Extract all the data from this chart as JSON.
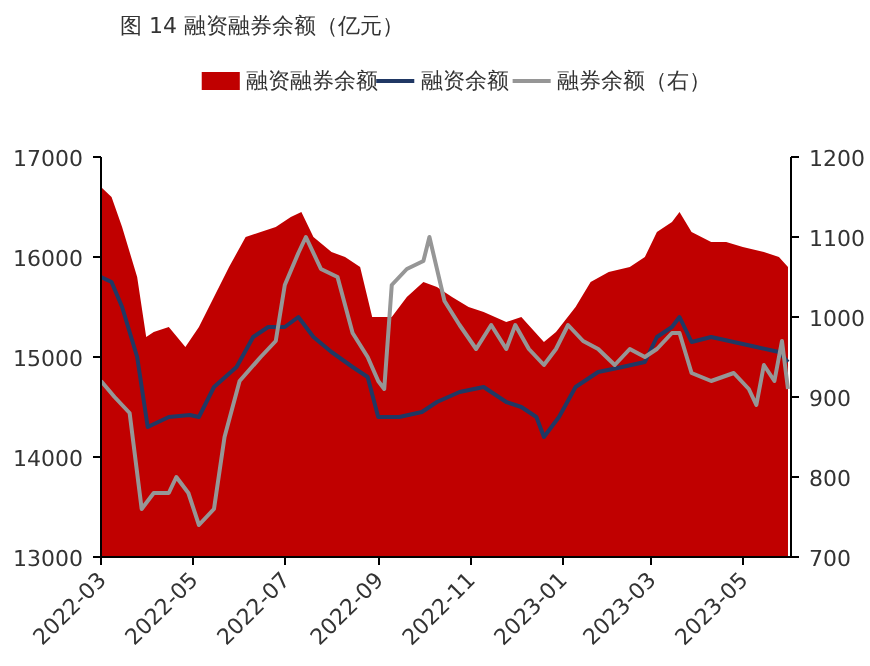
{
  "chart_data": {
    "type": "line",
    "title": "图 14 融资融券余额（亿元）",
    "xlim": [
      "2022-03-01",
      "2023-06-02"
    ],
    "xticks": [
      {
        "value": "2022-03-01",
        "label": "2022-03"
      },
      {
        "value": "2022-05-01",
        "label": "2022-05"
      },
      {
        "value": "2022-07-01",
        "label": "2022-07"
      },
      {
        "value": "2022-09-01",
        "label": "2022-09"
      },
      {
        "value": "2022-11-01",
        "label": "2022-11"
      },
      {
        "value": "2023-01-01",
        "label": "2023-01"
      },
      {
        "value": "2023-03-01",
        "label": "2023-03"
      },
      {
        "value": "2023-05-01",
        "label": "2023-05"
      }
    ],
    "ylim": [
      13000,
      17000
    ],
    "yticks": [
      13000,
      14000,
      15000,
      16000,
      17000
    ],
    "y2lim": [
      700,
      1200
    ],
    "y2ticks": [
      700,
      800,
      900,
      1000,
      1100,
      1200
    ],
    "legend": "top",
    "grid": false,
    "series": [
      {
        "name": "融资融券余额",
        "type": "area",
        "color": "#c00000",
        "x": [
          "2022-03-01",
          "2022-03-08",
          "2022-03-15",
          "2022-03-25",
          "2022-03-31",
          "2022-04-05",
          "2022-04-15",
          "2022-04-26",
          "2022-05-05",
          "2022-05-15",
          "2022-05-25",
          "2022-06-05",
          "2022-06-15",
          "2022-06-25",
          "2022-07-05",
          "2022-07-12",
          "2022-07-20",
          "2022-08-01",
          "2022-08-10",
          "2022-08-20",
          "2022-08-28",
          "2022-09-10",
          "2022-09-20",
          "2022-10-01",
          "2022-10-10",
          "2022-10-20",
          "2022-10-31",
          "2022-11-10",
          "2022-11-25",
          "2022-12-05",
          "2022-12-20",
          "2022-12-28",
          "2023-01-10",
          "2023-01-20",
          "2023-02-01",
          "2023-02-15",
          "2023-02-25",
          "2023-03-05",
          "2023-03-15",
          "2023-03-20",
          "2023-03-28",
          "2023-04-10",
          "2023-04-20",
          "2023-05-01",
          "2023-05-15",
          "2023-05-25",
          "2023-05-31"
        ],
        "values": [
          16700,
          16600,
          16300,
          15800,
          15200,
          15250,
          15300,
          15100,
          15300,
          15600,
          15900,
          16200,
          16250,
          16300,
          16400,
          16450,
          16200,
          16050,
          16000,
          15900,
          15400,
          15400,
          15600,
          15750,
          15700,
          15600,
          15500,
          15450,
          15350,
          15400,
          15150,
          15250,
          15500,
          15750,
          15850,
          15900,
          16000,
          16250,
          16350,
          16450,
          16250,
          16150,
          16150,
          16100,
          16050,
          16000,
          15900
        ]
      },
      {
        "name": "融资余额",
        "color": "#203864",
        "x": [
          "2022-03-01",
          "2022-03-08",
          "2022-03-15",
          "2022-03-25",
          "2022-04-01",
          "2022-04-15",
          "2022-04-29",
          "2022-05-05",
          "2022-05-15",
          "2022-05-30",
          "2022-06-10",
          "2022-06-20",
          "2022-07-01",
          "2022-07-10",
          "2022-07-20",
          "2022-08-01",
          "2022-08-15",
          "2022-08-25",
          "2022-09-01",
          "2022-09-15",
          "2022-09-30",
          "2022-10-10",
          "2022-10-25",
          "2022-11-10",
          "2022-11-25",
          "2022-12-05",
          "2022-12-15",
          "2022-12-20",
          "2022-12-30",
          "2023-01-10",
          "2023-01-25",
          "2023-02-10",
          "2023-02-25",
          "2023-03-05",
          "2023-03-15",
          "2023-03-20",
          "2023-03-28",
          "2023-04-10",
          "2023-04-25",
          "2023-05-10",
          "2023-05-25",
          "2023-05-31"
        ],
        "values": [
          15800,
          15750,
          15500,
          15000,
          14300,
          14400,
          14420,
          14400,
          14700,
          14900,
          15200,
          15300,
          15300,
          15400,
          15200,
          15050,
          14900,
          14800,
          14400,
          14400,
          14450,
          14550,
          14650,
          14700,
          14550,
          14500,
          14400,
          14200,
          14400,
          14700,
          14850,
          14900,
          14950,
          15200,
          15300,
          15400,
          15150,
          15200,
          15150,
          15100,
          15050,
          14950
        ]
      },
      {
        "name": "融券余额（右）",
        "axis": "y2",
        "color": "#969696",
        "x": [
          "2022-03-01",
          "2022-03-10",
          "2022-03-20",
          "2022-03-28",
          "2022-04-05",
          "2022-04-15",
          "2022-04-20",
          "2022-04-28",
          "2022-05-05",
          "2022-05-15",
          "2022-05-22",
          "2022-06-01",
          "2022-06-15",
          "2022-06-25",
          "2022-07-01",
          "2022-07-10",
          "2022-07-15",
          "2022-07-25",
          "2022-08-05",
          "2022-08-15",
          "2022-08-25",
          "2022-09-01",
          "2022-09-05",
          "2022-09-10",
          "2022-09-20",
          "2022-10-01",
          "2022-10-05",
          "2022-10-15",
          "2022-10-25",
          "2022-11-05",
          "2022-11-15",
          "2022-11-25",
          "2022-12-01",
          "2022-12-10",
          "2022-12-20",
          "2022-12-28",
          "2023-01-05",
          "2023-01-15",
          "2023-01-25",
          "2023-02-05",
          "2023-02-15",
          "2023-02-25",
          "2023-03-05",
          "2023-03-15",
          "2023-03-20",
          "2023-03-28",
          "2023-04-10",
          "2023-04-25",
          "2023-05-05",
          "2023-05-10",
          "2023-05-15",
          "2023-05-22",
          "2023-05-27",
          "2023-05-31"
        ],
        "values": [
          920,
          900,
          880,
          760,
          780,
          780,
          800,
          780,
          740,
          760,
          850,
          920,
          950,
          970,
          1040,
          1080,
          1100,
          1060,
          1050,
          980,
          950,
          920,
          910,
          1040,
          1060,
          1070,
          1100,
          1020,
          990,
          960,
          990,
          960,
          990,
          960,
          940,
          960,
          990,
          970,
          960,
          940,
          960,
          950,
          960,
          980,
          980,
          930,
          920,
          930,
          910,
          890,
          940,
          920,
          970,
          910
        ]
      }
    ]
  }
}
